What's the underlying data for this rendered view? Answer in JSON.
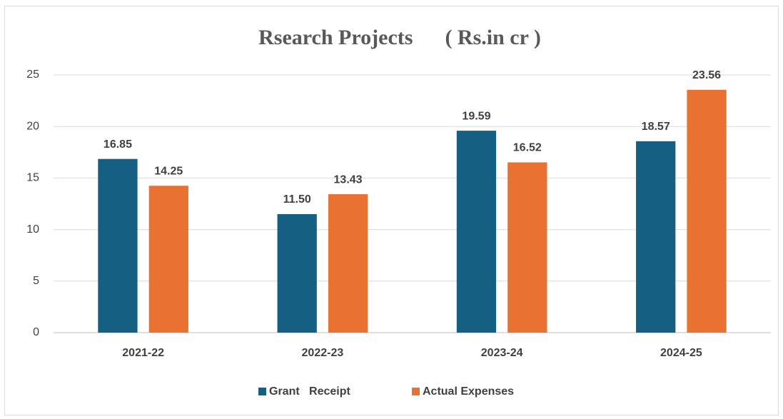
{
  "chart_data": {
    "type": "bar",
    "title": "Rsearch Projects      ( Rs.in cr )",
    "categories": [
      "2021-22",
      "2022-23",
      "2023-24",
      "2024-25"
    ],
    "series": [
      {
        "name": "Grant   Receipt",
        "color": "#156082",
        "values": [
          16.85,
          11.5,
          19.59,
          18.57
        ],
        "value_labels": [
          "16.85",
          "11.50",
          "19.59",
          "18.57"
        ]
      },
      {
        "name": "Actual Expenses",
        "color": "#e97132",
        "values": [
          14.25,
          13.43,
          16.52,
          23.56
        ],
        "value_labels": [
          "14.25",
          "13.43",
          "16.52",
          "23.56"
        ]
      }
    ],
    "ylim": [
      0,
      25
    ],
    "yticks": [
      0,
      5,
      10,
      15,
      20,
      25
    ],
    "grid": true,
    "legend": "bottom"
  }
}
